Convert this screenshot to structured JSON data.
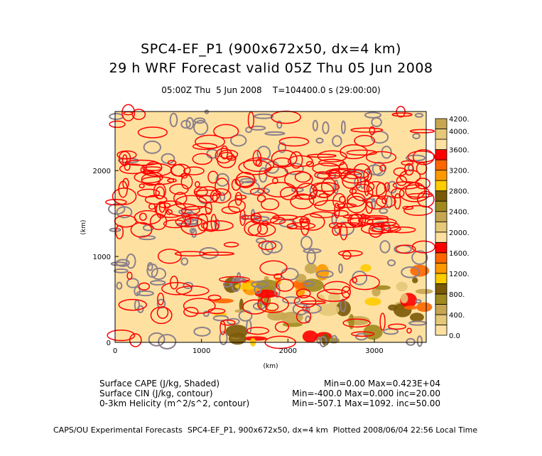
{
  "header": {
    "title1": "SPC4-EF_P1 (900x672x50, dx=4 km)",
    "title2": "29 h WRF Forecast valid 05Z Thu 05 Jun 2008",
    "subtitle": "05:00Z Thu  5 Jun 2008    T=104400.0 s (29:00:00)"
  },
  "chart_data": {
    "type": "heatmap",
    "xlabel": "(km)",
    "ylabel": "(km)",
    "xlim": [
      0,
      3600
    ],
    "ylim": [
      0,
      2688
    ],
    "xticks": [
      "0",
      "1000",
      "2000",
      "3000"
    ],
    "yticks": [
      "0",
      "1000",
      "2000"
    ],
    "colorbar": {
      "labels": [
        "0.0",
        "400.",
        "800.",
        "1200.",
        "1600.",
        "2000.",
        "2400.",
        "2800.",
        "3200.",
        "3600.",
        "4000.",
        "4200."
      ],
      "colors": [
        "#FEE1A0",
        "#E5C878",
        "#C6A650",
        "#A08A1E",
        "#7A5A08",
        "#FFCC00",
        "#FF9900",
        "#FF6600",
        "#FF0000",
        "#FEE1A0",
        "#E5C878",
        "#C6A650",
        "#A08A1E",
        "#7A5A08",
        "#FFCC00",
        "#FF9900",
        "#FF6600",
        "#FF0000",
        "#FEE1A0",
        "#E5C878",
        "#C6A650"
      ]
    },
    "contour_colors": {
      "cin": "#8C7F8C",
      "helicity": "#FF0000"
    }
  },
  "legend": {
    "rows": [
      {
        "label": "Surface CAPE (J/kg, Shaded)",
        "stats": "Min=0.00 Max=0.423E+04"
      },
      {
        "label": "Surface CIN (J/kg, contour)",
        "stats": "Min=-400.0 Max=0.000 inc=20.00"
      },
      {
        "label": "0-3km Helicity (m^2/s^2, contour)",
        "stats": "Min=-507.1 Max=1092. inc=50.00"
      }
    ]
  },
  "footer": "CAPS/OU Experimental Forecasts  SPC4-EF_P1, 900x672x50, dx=4 km  Plotted 2008/06/04 22:56 Local Time"
}
